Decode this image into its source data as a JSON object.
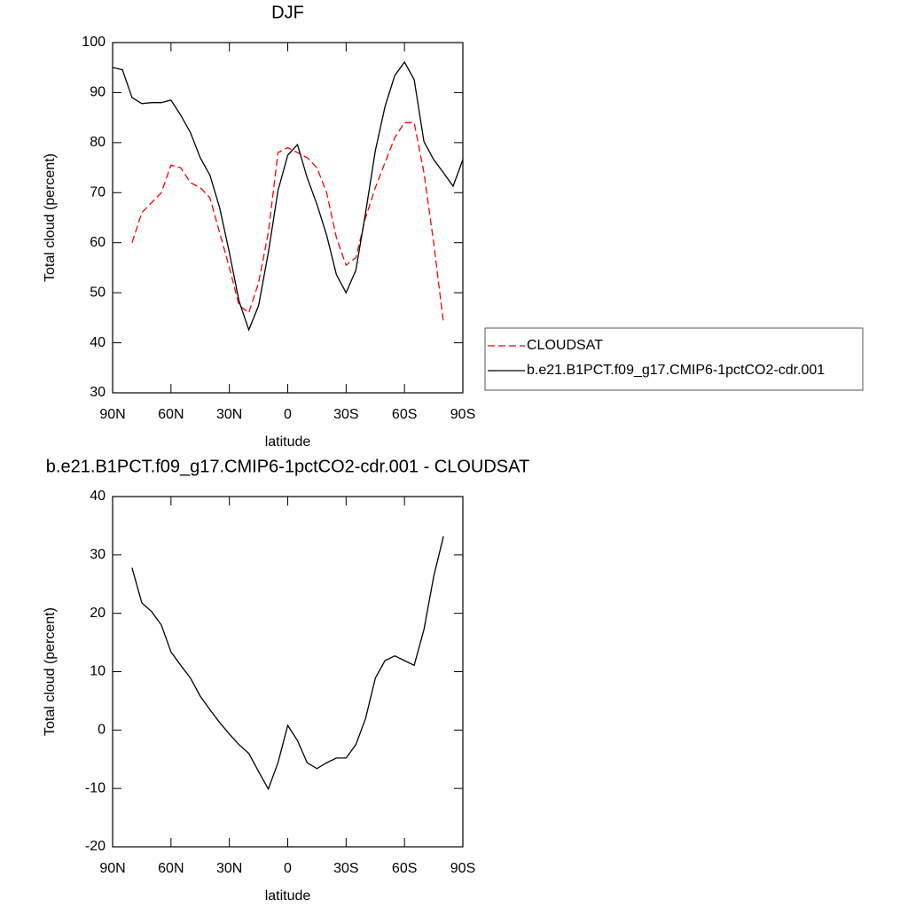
{
  "chart_data": [
    {
      "type": "line",
      "title": "DJF",
      "xlabel": "latitude",
      "ylabel": "Total cloud (percent)",
      "x": [
        90,
        85,
        80,
        75,
        70,
        65,
        60,
        55,
        50,
        45,
        40,
        35,
        30,
        25,
        20,
        15,
        10,
        5,
        0,
        -5,
        -10,
        -15,
        -20,
        -25,
        -30,
        -35,
        -40,
        -45,
        -50,
        -55,
        -60,
        -65,
        -70,
        -75,
        -80,
        -85,
        -90
      ],
      "xlim": [
        90,
        -90
      ],
      "xticks": [
        {
          "value": 90,
          "label": "90N"
        },
        {
          "value": 60,
          "label": "60N"
        },
        {
          "value": 30,
          "label": "30N"
        },
        0,
        {
          "value": -30,
          "label": "30S"
        },
        {
          "value": -60,
          "label": "60S"
        },
        {
          "value": -90,
          "label": "90S"
        }
      ],
      "ylim": [
        30,
        100
      ],
      "yticks": [
        30,
        40,
        50,
        60,
        70,
        80,
        90,
        100
      ],
      "legend": "right",
      "series": [
        {
          "name": "CLOUDSAT",
          "color": "#ff0000",
          "line_style": "dashed",
          "values": [
            null,
            null,
            60,
            66,
            68,
            70,
            75.5,
            75,
            72,
            71,
            69,
            62,
            55,
            47.5,
            46,
            52,
            62,
            78,
            79,
            78,
            77,
            75,
            70,
            61,
            55.5,
            57,
            65,
            71,
            76,
            81,
            84,
            84,
            74,
            60,
            44,
            null,
            null
          ]
        },
        {
          "name": "b.e21.B1PCT.f09_g17.CMIP6-1pctCO2-cdr.001",
          "color": "#000000",
          "line_style": "solid",
          "values": [
            95,
            94.6,
            89,
            87.8,
            88,
            88,
            88.5,
            85.5,
            82,
            77,
            73.5,
            67,
            58,
            48.3,
            42.6,
            47.4,
            58,
            70.4,
            77.5,
            79.6,
            73,
            67.7,
            61.5,
            53.6,
            50,
            54.5,
            66,
            78.4,
            87.2,
            93.4,
            96.1,
            92.6,
            80.2,
            76.6,
            74,
            71.3,
            76.6
          ]
        }
      ]
    },
    {
      "type": "line",
      "title": "b.e21.B1PCT.f09_g17.CMIP6-1pctCO2-cdr.001 - CLOUDSAT",
      "xlabel": "latitude",
      "ylabel": "Total cloud (percent)",
      "x": [
        80,
        75,
        70,
        65,
        60,
        55,
        50,
        45,
        40,
        35,
        30,
        25,
        20,
        15,
        10,
        5,
        0,
        -5,
        -10,
        -15,
        -20,
        -25,
        -30,
        -35,
        -40,
        -45,
        -50,
        -55,
        -60,
        -65,
        -70,
        -75,
        -80
      ],
      "xlim": [
        90,
        -90
      ],
      "xticks": [
        {
          "value": 90,
          "label": "90N"
        },
        {
          "value": 60,
          "label": "60N"
        },
        {
          "value": 30,
          "label": "30N"
        },
        0,
        {
          "value": -30,
          "label": "30S"
        },
        {
          "value": -60,
          "label": "60S"
        },
        {
          "value": -90,
          "label": "90S"
        }
      ],
      "ylim": [
        -20,
        40
      ],
      "yticks": [
        -20,
        -10,
        0,
        10,
        20,
        30,
        40
      ],
      "series": [
        {
          "color": "#000000",
          "line_style": "solid",
          "values": [
            27.8,
            21.8,
            20.3,
            18,
            13.4,
            11.1,
            8.9,
            5.8,
            3.5,
            1.3,
            -0.7,
            -2.5,
            -4,
            -7.1,
            -10.1,
            -5.6,
            0.8,
            -1.8,
            -5.6,
            -6.6,
            -5.6,
            -4.8,
            -4.8,
            -2.5,
            2,
            8.9,
            11.9,
            12.7,
            11.9,
            11.1,
            17.2,
            26.3,
            33.2
          ]
        }
      ]
    }
  ]
}
